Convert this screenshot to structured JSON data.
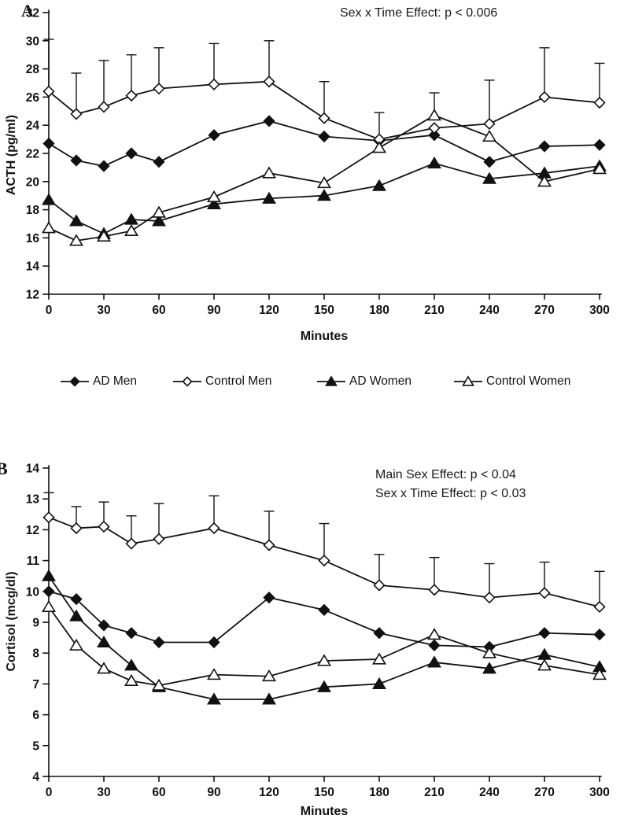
{
  "chart_data": [
    {
      "id": "a",
      "panel_label": "A",
      "type": "line",
      "xlabel": "Minutes",
      "ylabel": "ACTH (pg/ml)",
      "annotations": [
        "Sex x Time Effect: p < 0.006"
      ],
      "xlim": [
        0,
        300
      ],
      "ylim": [
        12,
        32
      ],
      "ytick_step": 2,
      "xticks": [
        0,
        30,
        60,
        90,
        120,
        150,
        180,
        210,
        240,
        270,
        300
      ],
      "x": [
        0,
        15,
        30,
        45,
        60,
        90,
        120,
        150,
        180,
        210,
        240,
        270,
        300
      ],
      "grid": false,
      "series": [
        {
          "name": "AD Men",
          "marker": "diamond",
          "fill": "filled",
          "values": [
            22.7,
            21.5,
            21.1,
            22.0,
            21.4,
            23.3,
            24.3,
            23.2,
            22.9,
            23.3,
            21.4,
            22.5,
            22.6
          ]
        },
        {
          "name": "Control Men",
          "marker": "diamond",
          "fill": "open",
          "values": [
            26.4,
            24.8,
            25.3,
            26.1,
            26.6,
            26.9,
            27.1,
            24.5,
            23.0,
            23.8,
            24.1,
            26.0,
            25.6
          ],
          "error_upper": [
            30.1,
            27.7,
            28.6,
            29.0,
            29.5,
            29.8,
            30.0,
            27.1,
            24.9,
            null,
            27.2,
            29.5,
            28.4
          ]
        },
        {
          "name": "AD Women",
          "marker": "triangle",
          "fill": "filled",
          "values": [
            18.7,
            17.2,
            16.3,
            17.3,
            17.2,
            18.4,
            18.8,
            19.0,
            19.7,
            21.3,
            20.2,
            20.6,
            21.1
          ]
        },
        {
          "name": "Control Women",
          "marker": "triangle",
          "fill": "open",
          "values": [
            16.7,
            15.8,
            16.1,
            16.5,
            17.8,
            18.9,
            20.6,
            19.9,
            22.4,
            24.7,
            23.2,
            20.0,
            20.9
          ],
          "error_upper": [
            null,
            null,
            null,
            null,
            null,
            null,
            null,
            null,
            null,
            26.3,
            null,
            null,
            null
          ]
        }
      ]
    },
    {
      "id": "b",
      "panel_label": "B",
      "type": "line",
      "xlabel": "Minutes",
      "ylabel": "Cortisol (mcg/dl)",
      "annotations": [
        "Main Sex Effect: p < 0.04",
        "Sex x Time Effect: p < 0.03"
      ],
      "xlim": [
        0,
        300
      ],
      "ylim": [
        4,
        14
      ],
      "ytick_step": 1,
      "xticks": [
        0,
        30,
        60,
        90,
        120,
        150,
        180,
        210,
        240,
        270,
        300
      ],
      "x": [
        0,
        15,
        30,
        45,
        60,
        90,
        120,
        150,
        180,
        210,
        240,
        270,
        300
      ],
      "grid": false,
      "series": [
        {
          "name": "AD Men",
          "marker": "diamond",
          "fill": "filled",
          "values": [
            10.0,
            9.75,
            8.9,
            8.65,
            8.35,
            8.35,
            9.8,
            9.4,
            8.65,
            8.25,
            8.2,
            8.65,
            8.6
          ]
        },
        {
          "name": "Control Men",
          "marker": "diamond",
          "fill": "open",
          "values": [
            12.4,
            12.05,
            12.1,
            11.55,
            11.7,
            12.05,
            11.5,
            11.0,
            10.2,
            10.05,
            9.8,
            9.95,
            9.5
          ],
          "error_upper": [
            13.2,
            12.75,
            12.9,
            12.45,
            12.85,
            13.1,
            12.6,
            12.2,
            11.2,
            11.1,
            10.9,
            10.95,
            10.65
          ]
        },
        {
          "name": "AD Women",
          "marker": "triangle",
          "fill": "filled",
          "values": [
            10.5,
            9.2,
            8.35,
            7.6,
            6.9,
            6.5,
            6.5,
            6.9,
            7.0,
            7.7,
            7.5,
            7.95,
            7.55
          ]
        },
        {
          "name": "Control Women",
          "marker": "triangle",
          "fill": "open",
          "values": [
            9.5,
            8.25,
            7.5,
            7.1,
            6.95,
            7.3,
            7.25,
            7.75,
            7.8,
            8.6,
            8.0,
            7.6,
            7.3
          ]
        }
      ]
    }
  ],
  "legend": {
    "items": [
      {
        "label": "AD Men",
        "marker": "diamond",
        "fill": "filled"
      },
      {
        "label": "Control Men",
        "marker": "diamond",
        "fill": "open"
      },
      {
        "label": "AD Women",
        "marker": "triangle",
        "fill": "filled"
      },
      {
        "label": "Control Women",
        "marker": "triangle",
        "fill": "open"
      }
    ]
  },
  "colors": {
    "line": "#111111",
    "background": "#ffffff"
  }
}
